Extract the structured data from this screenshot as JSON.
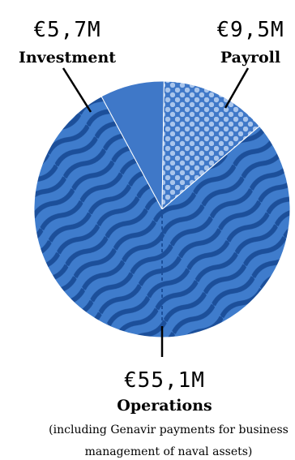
{
  "chart_data": {
    "type": "pie",
    "slices": [
      {
        "label": "Investment",
        "amount_label": "€5,7M",
        "value": 5.7,
        "color": "#3f78c8",
        "pattern": "solid"
      },
      {
        "label": "Payroll",
        "amount_label": "€9,5M",
        "value": 9.5,
        "color": "#a9c5ec",
        "pattern": "dots"
      },
      {
        "label": "Operations",
        "amount_label": "€55,1M",
        "value": 55.1,
        "color": "#2a66b6",
        "pattern": "waves",
        "note_lines": [
          "(including Genavir payments for business",
          "management of naval assets)"
        ]
      }
    ],
    "unit": "€M"
  }
}
